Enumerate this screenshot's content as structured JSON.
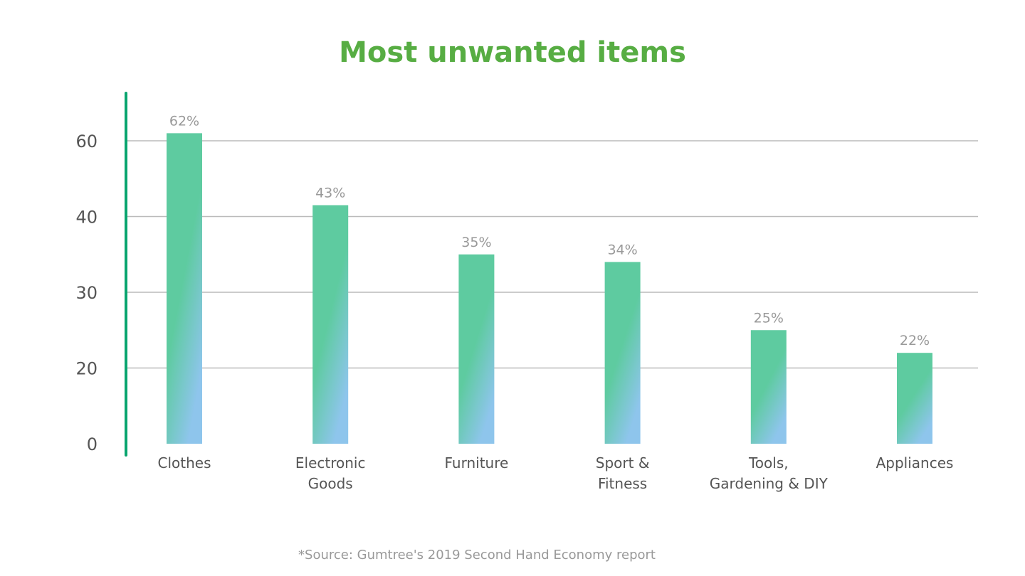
{
  "chart_data": {
    "type": "bar",
    "title": "Most unwanted items",
    "categories": [
      [
        "Clothes"
      ],
      [
        "Electronic",
        "Goods"
      ],
      [
        "Furniture"
      ],
      [
        "Sport &",
        "Fitness"
      ],
      [
        "Tools,",
        "Gardening & DIY"
      ],
      [
        "Appliances"
      ]
    ],
    "values": [
      62,
      43,
      35,
      34,
      25,
      22
    ],
    "data_labels": [
      "62%",
      "43%",
      "35%",
      "34%",
      "25%",
      "22%"
    ],
    "yticks": [
      0,
      20,
      30,
      40,
      60
    ],
    "xlabel": "",
    "ylabel": "",
    "grid": true,
    "colors": {
      "title": "#57ad43",
      "bar_top": "#5ecba0",
      "bar_bottom": "#8ec5ec",
      "axis": "#0aa56f",
      "axis_end": "#3fa2e0",
      "grid": "#bbbbbb"
    }
  },
  "source": "*Source: Gumtree's 2019 Second Hand Economy report"
}
